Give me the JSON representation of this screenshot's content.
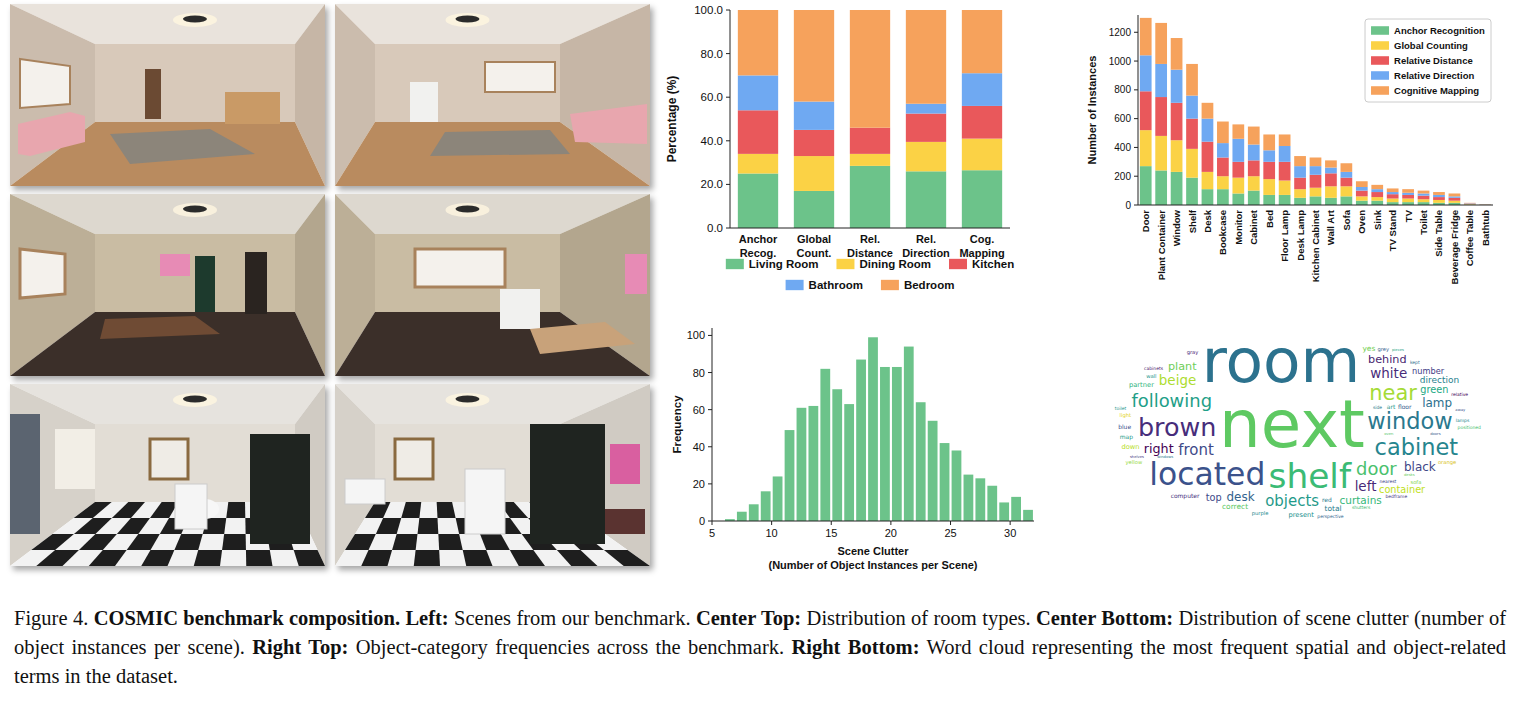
{
  "chart_data": [
    {
      "type": "bar",
      "stacked": true,
      "ylabel": "Percentage (%)",
      "categories": [
        "Anchor Recog.",
        "Global Count.",
        "Rel. Distance",
        "Rel. Direction",
        "Cog. Mapping"
      ],
      "ylim": [
        0,
        100
      ],
      "yticks": [
        {
          "value": 0,
          "label": "0.0"
        },
        {
          "value": 20,
          "label": "20.0"
        },
        {
          "value": 40,
          "label": "40.0"
        },
        {
          "value": 60,
          "label": "60.0"
        },
        {
          "value": 80,
          "label": "80.0"
        },
        {
          "value": 100,
          "label": "100.0"
        }
      ],
      "legend": "bottom",
      "series": [
        {
          "name": "Living Room",
          "color": "#6cc38a",
          "values": [
            25,
            17,
            28.5,
            26,
            26.5
          ]
        },
        {
          "name": "Dining Room",
          "color": "#fbd245",
          "values": [
            9,
            16,
            5.5,
            13.5,
            14.5
          ]
        },
        {
          "name": "Kitchen",
          "color": "#e9585b",
          "values": [
            20,
            12,
            12,
            13,
            15
          ]
        },
        {
          "name": "Bathroom",
          "color": "#6fa9f2",
          "values": [
            16,
            13,
            0,
            4.5,
            15
          ]
        },
        {
          "name": "Bedroom",
          "color": "#f6a25c",
          "values": [
            30,
            42,
            54,
            43,
            29
          ]
        }
      ]
    },
    {
      "type": "histogram",
      "xlabel": "Scene Clutter (Number of Object Instances per Scene)",
      "ylabel": "Frequency",
      "bins": [
        6,
        7,
        8,
        9,
        10,
        11,
        12,
        13,
        14,
        15,
        16,
        17,
        18,
        19,
        20,
        21,
        22,
        23,
        24,
        25,
        26,
        27,
        28,
        29,
        30,
        31,
        32
      ],
      "values": [
        1,
        5,
        9,
        16,
        24,
        49,
        61,
        62,
        82,
        71,
        63,
        87,
        99,
        83,
        83,
        94,
        64,
        54,
        42,
        38,
        25,
        23,
        19,
        10,
        13,
        6
      ],
      "color": "#6cc38a",
      "xlim": [
        5,
        32
      ],
      "xticks": [
        5,
        10,
        15,
        20,
        25,
        30
      ],
      "ylim": [
        0,
        104
      ],
      "yticks": [
        0,
        20,
        40,
        60,
        80,
        100
      ]
    },
    {
      "type": "bar",
      "stacked": true,
      "ylabel": "Number of Instances",
      "categories": [
        "Door",
        "Plant Container",
        "Window",
        "Shelf",
        "Desk",
        "Bookcase",
        "Monitor",
        "Cabinet",
        "Bed",
        "Floor Lamp",
        "Desk Lamp",
        "Kitchen Cabinet",
        "Wall Art",
        "Sofa",
        "Oven",
        "Sink",
        "TV Stand",
        "TV",
        "Toilet",
        "Side Table",
        "Beverage Fridge",
        "Coffee Table",
        "Bathtub"
      ],
      "ylim": [
        0,
        1320
      ],
      "yticks": [
        0,
        200,
        400,
        600,
        800,
        1000,
        1200
      ],
      "legend": "top-right",
      "series": [
        {
          "name": "Anchor Recognition",
          "color": "#6cc38a",
          "values": [
            270,
            240,
            230,
            190,
            110,
            110,
            80,
            100,
            70,
            70,
            50,
            60,
            50,
            60,
            30,
            30,
            20,
            20,
            20,
            15,
            15,
            3,
            1
          ]
        },
        {
          "name": "Global Counting",
          "color": "#fbd245",
          "values": [
            250,
            240,
            220,
            200,
            120,
            90,
            110,
            100,
            110,
            100,
            60,
            60,
            80,
            70,
            30,
            25,
            25,
            25,
            20,
            20,
            15,
            3,
            1
          ]
        },
        {
          "name": "Relative Distance",
          "color": "#e9585b",
          "values": [
            270,
            270,
            260,
            210,
            210,
            130,
            110,
            110,
            120,
            130,
            80,
            90,
            90,
            60,
            40,
            35,
            30,
            25,
            25,
            20,
            20,
            3,
            1
          ]
        },
        {
          "name": "Relative Direction",
          "color": "#6fa9f2",
          "values": [
            250,
            230,
            230,
            160,
            160,
            100,
            160,
            110,
            80,
            110,
            80,
            60,
            40,
            40,
            25,
            20,
            15,
            15,
            15,
            15,
            10,
            3,
            1
          ]
        },
        {
          "name": "Cognitive Mapping",
          "color": "#f6a25c",
          "values": [
            260,
            285,
            220,
            220,
            110,
            150,
            100,
            125,
            110,
            80,
            70,
            60,
            50,
            60,
            40,
            30,
            25,
            25,
            20,
            20,
            20,
            3,
            1
          ]
        }
      ]
    },
    {
      "type": "wordcloud",
      "words": [
        "next",
        "room",
        "shelf",
        "located",
        "brown",
        "window",
        "cabinet",
        "near",
        "following",
        "door",
        "front",
        "objects",
        "white",
        "beige",
        "left",
        "right",
        "desk",
        "lamp",
        "black",
        "plant",
        "behind",
        "curtains",
        "container",
        "green",
        "top",
        "direction",
        "number",
        "yes",
        "total",
        "correct",
        "down",
        "partner",
        "present",
        "computer",
        "map",
        "art",
        "floor",
        "blue",
        "red",
        "sofa",
        "light",
        "gray",
        "grey",
        "orange",
        "purple",
        "yellow",
        "wall",
        "nearest",
        "bedframe",
        "side",
        "shutters",
        "cabinets",
        "lamps",
        "kept",
        "positioned",
        "toilet",
        "perspective",
        "relative",
        "oven",
        "windows",
        "doors",
        "desks",
        "shelves",
        "pieces",
        "away"
      ],
      "weights": [
        88,
        82,
        46,
        42,
        34,
        30,
        30,
        28,
        24,
        24,
        20,
        20,
        18,
        18,
        18,
        17,
        16,
        16,
        16,
        15,
        15,
        14,
        13,
        13,
        13,
        12,
        11,
        10,
        10,
        10,
        9,
        9,
        9,
        8,
        8,
        8,
        8,
        8,
        8,
        7,
        7,
        7,
        7,
        7,
        7,
        7,
        7,
        6,
        6,
        6,
        6,
        6,
        6,
        6,
        6,
        6,
        6,
        6,
        5,
        5,
        5,
        5,
        5,
        5,
        5
      ],
      "colors": [
        "#5ec962",
        "#2c728e",
        "#3bbb75",
        "#3b528b",
        "#472d7b",
        "#2a788e",
        "#25858e",
        "#a5db36",
        "#1fa088",
        "#4ac16d",
        "#3e4a89",
        "#1f9a8a",
        "#472c7a",
        "#addc30",
        "#482878",
        "#440154",
        "#33638d",
        "#2d708e",
        "#3f4788",
        "#6ece58",
        "#481f70",
        "#35b779",
        "#c2df23",
        "#22a884",
        "#3e4989",
        "#26828e",
        "#424086",
        "#75d054",
        "#287c8e",
        "#5ac864",
        "#b8de29",
        "#2fb47c",
        "#218f8d",
        "#46307e",
        "#1e9b8a",
        "#1f978b",
        "#365c8d",
        "#3b518b",
        "#29798e",
        "#7fd34e",
        "#e3d31a",
        "#482475",
        "#34618d",
        "#d8c219",
        "#23898e",
        "#93d741",
        "#20938c",
        "#414487",
        "#453781",
        "#297b8e",
        "#3dbc74",
        "#481a6c",
        "#24878e",
        "#2e6e8e",
        "#48c16e",
        "#1f958b",
        "#31668e",
        "#450559",
        "#50c46a",
        "#2b758e",
        "#38598c",
        "#67cc5c",
        "#443a83",
        "#20a386",
        "#3a548c"
      ]
    }
  ],
  "caption": {
    "label": "Figure 4.",
    "title": "COSMIC benchmark composition.",
    "parts": [
      {
        "head": "Left:",
        "text": "Scenes from our benchmark."
      },
      {
        "head": "Center Top:",
        "text": "Distribution of room types."
      },
      {
        "head": "Center Bottom:",
        "text": "Distribution of scene clutter (number of object instances per scene)."
      },
      {
        "head": "Right Top:",
        "text": "Object-category frequencies across the benchmark."
      },
      {
        "head": "Right Bottom:",
        "text": "Word cloud representing the most frequent spatial and object-related terms in the dataset."
      }
    ]
  }
}
